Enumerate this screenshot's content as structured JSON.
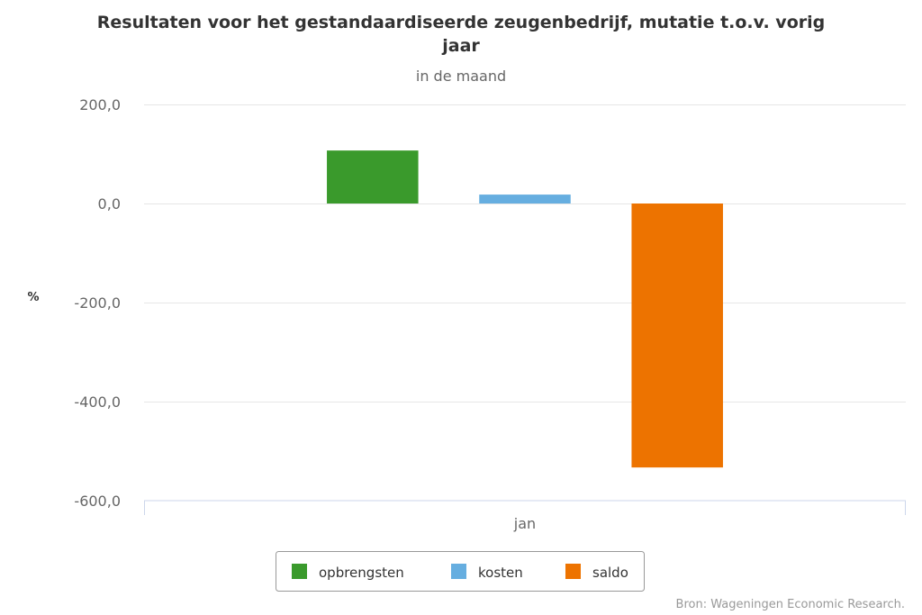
{
  "chart_data": {
    "type": "bar",
    "title_lines": [
      "Resultaten voor het gestandaardiseerde zeugenbedrijf, mutatie t.o.v. vorig",
      "jaar"
    ],
    "subtitle": "in de maand",
    "categories": [
      "jan"
    ],
    "series": [
      {
        "name": "opbrengsten",
        "color": "#3a9a2c",
        "values": [
          107
        ]
      },
      {
        "name": "kosten",
        "color": "#66aee0",
        "values": [
          18
        ]
      },
      {
        "name": "saldo",
        "color": "#ed7300",
        "values": [
          -533
        ]
      }
    ],
    "ylabel": "%",
    "ylim": [
      -600,
      200
    ],
    "yticks": [
      200,
      0,
      -200,
      -400,
      -600
    ],
    "ytick_labels": [
      "200,0",
      "0,0",
      "-200,0",
      "-400,0",
      "-600,0"
    ],
    "grid": true,
    "legend_position": "bottom-center",
    "credits": "Bron: Wageningen Economic Research."
  }
}
